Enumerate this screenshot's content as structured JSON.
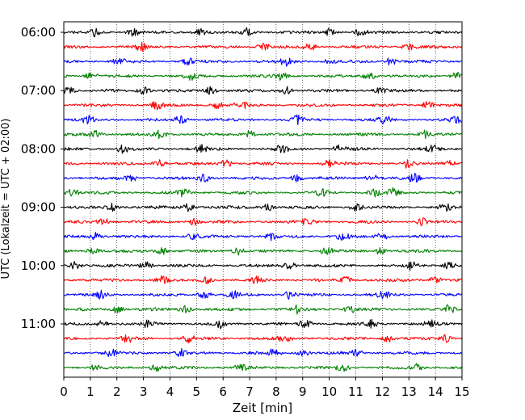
{
  "chart_data": {
    "type": "line",
    "title": "",
    "xlabel": "Zeit  [min]",
    "ylabel": "UTC (Lokalzeit = UTC + 02:00)",
    "xlim": [
      0,
      15
    ],
    "x_ticks": [
      0,
      1,
      2,
      3,
      4,
      5,
      6,
      7,
      8,
      9,
      10,
      11,
      12,
      13,
      14,
      15
    ],
    "y_axis": {
      "start": "06:00",
      "trace_interval_min": 15,
      "tick_labels": [
        "06:00",
        "07:00",
        "08:00",
        "09:00",
        "10:00",
        "11:00"
      ],
      "inverted": true
    },
    "grid": {
      "x_major": true,
      "style": "dotted"
    },
    "legend": "none",
    "color_cycle": [
      "#000000",
      "#ff0000",
      "#0000ff",
      "#008000"
    ],
    "traces": [
      {
        "start": "06:00",
        "events_min": [
          1.2,
          2.6,
          5.1,
          6.9,
          10.0,
          11.2
        ]
      },
      {
        "start": "06:15",
        "events_min": [
          2.9,
          7.5,
          9.3,
          13.0
        ]
      },
      {
        "start": "06:30",
        "events_min": [
          2.1,
          4.7,
          8.4,
          10.0,
          12.3
        ]
      },
      {
        "start": "06:45",
        "events_min": [
          1.0,
          4.8,
          8.2,
          11.5,
          14.8
        ]
      },
      {
        "start": "07:00",
        "events_min": [
          0.2,
          3.0,
          5.5,
          8.4,
          11.9
        ]
      },
      {
        "start": "07:15",
        "events_min": [
          3.5,
          5.8,
          6.7,
          13.7
        ]
      },
      {
        "start": "07:30",
        "events_min": [
          0.9,
          4.4,
          8.8,
          12.1,
          14.8
        ]
      },
      {
        "start": "07:45",
        "events_min": [
          1.2,
          3.6,
          7.0,
          13.6
        ]
      },
      {
        "start": "08:00",
        "events_min": [
          2.2,
          5.2,
          8.2,
          10.4,
          13.9
        ]
      },
      {
        "start": "08:15",
        "events_min": [
          3.6,
          6.1,
          10.0,
          12.9,
          14.5
        ]
      },
      {
        "start": "08:30",
        "events_min": [
          2.5,
          5.3,
          8.8,
          11.6,
          13.2
        ]
      },
      {
        "start": "08:45",
        "events_min": [
          0.3,
          4.5,
          9.7,
          11.7,
          12.4
        ]
      },
      {
        "start": "09:00",
        "events_min": [
          1.8,
          4.7,
          7.7,
          11.0,
          14.4
        ]
      },
      {
        "start": "09:15",
        "events_min": [
          1.5,
          4.9,
          9.2,
          13.5
        ]
      },
      {
        "start": "09:30",
        "events_min": [
          1.2,
          4.9,
          7.8,
          10.5,
          12.0
        ]
      },
      {
        "start": "09:45",
        "events_min": [
          1.1,
          3.7,
          6.6,
          9.9,
          11.9
        ]
      },
      {
        "start": "10:00",
        "events_min": [
          0.4,
          3.1,
          8.5,
          13.1,
          14.5
        ]
      },
      {
        "start": "10:15",
        "events_min": [
          3.7,
          5.4,
          7.3,
          10.6,
          14.0
        ]
      },
      {
        "start": "10:30",
        "events_min": [
          1.4,
          5.3,
          6.4,
          8.5,
          12.0
        ]
      },
      {
        "start": "10:45",
        "events_min": [
          2.0,
          4.6,
          8.8,
          10.8,
          14.5
        ]
      },
      {
        "start": "11:00",
        "events_min": [
          1.5,
          3.2,
          5.9,
          9.1,
          11.6,
          13.8
        ]
      },
      {
        "start": "11:15",
        "events_min": [
          2.4,
          4.7,
          8.3,
          12.2,
          14.4
        ]
      },
      {
        "start": "11:30",
        "events_min": [
          1.8,
          4.4,
          7.9,
          9.0,
          11.0
        ]
      },
      {
        "start": "11:45",
        "events_min": [
          1.1,
          3.5,
          6.7,
          10.5,
          13.3
        ]
      }
    ]
  }
}
